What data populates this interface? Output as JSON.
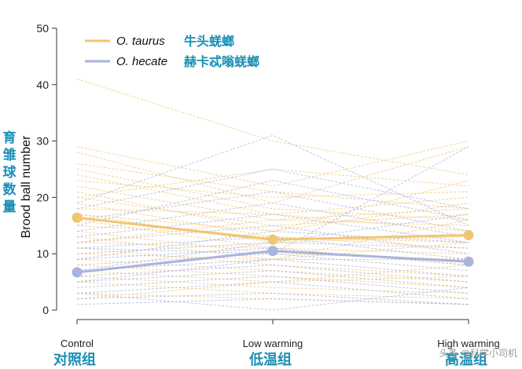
{
  "chart_data": {
    "type": "line",
    "categories": [
      "Control",
      "Low warming",
      "High warming"
    ],
    "categories_cn": [
      "对照组",
      "低温组",
      "高温组"
    ],
    "ylabel": "Brood ball number",
    "ylabel_cn": "育雏球数量",
    "ylim": [
      0,
      50
    ],
    "yticks": [
      0,
      10,
      20,
      30,
      40,
      50
    ],
    "grid": false,
    "legend_placement": "top-left",
    "series": [
      {
        "name": "O. taurus",
        "name_cn": "牛头蜣螂",
        "color": "#f2c572",
        "values": [
          16.4,
          12.5,
          13.3
        ]
      },
      {
        "name": "O. hecate",
        "name_cn": "赫卡忒嗡蜣螂",
        "color": "#aab3dc",
        "values": [
          6.7,
          10.5,
          8.6
        ]
      }
    ],
    "individual_lines": {
      "O. taurus": [
        [
          41,
          30,
          24
        ],
        [
          29,
          22,
          30
        ],
        [
          28,
          19,
          29
        ],
        [
          26,
          21,
          18
        ],
        [
          25,
          18,
          16
        ],
        [
          24,
          17,
          20
        ],
        [
          22,
          16,
          15
        ],
        [
          21,
          14,
          19
        ],
        [
          20,
          15,
          17
        ],
        [
          19,
          13,
          12
        ],
        [
          18,
          17,
          14
        ],
        [
          17,
          12,
          13
        ],
        [
          16,
          11,
          10
        ],
        [
          15,
          13,
          11
        ],
        [
          14,
          10,
          9
        ],
        [
          13,
          9,
          16
        ],
        [
          12,
          11,
          8
        ],
        [
          11,
          8,
          6
        ],
        [
          10,
          9,
          12
        ],
        [
          9,
          7,
          5
        ],
        [
          8,
          6,
          4
        ],
        [
          7,
          5,
          8
        ],
        [
          6,
          4,
          3
        ],
        [
          5,
          3,
          2
        ],
        [
          3,
          2,
          1
        ],
        [
          2,
          5,
          6
        ],
        [
          20,
          25,
          22
        ],
        [
          23,
          20,
          21
        ],
        [
          17,
          14,
          23
        ],
        [
          12,
          16,
          18
        ]
      ],
      "O. hecate": [
        [
          19,
          31,
          15
        ],
        [
          18,
          25,
          18
        ],
        [
          16,
          21,
          14
        ],
        [
          14,
          19,
          13
        ],
        [
          13,
          17,
          12
        ],
        [
          12,
          15,
          10
        ],
        [
          11,
          13,
          9
        ],
        [
          10,
          12,
          11
        ],
        [
          9,
          11,
          8
        ],
        [
          8,
          10,
          7
        ],
        [
          7,
          9,
          6
        ],
        [
          6,
          8,
          5
        ],
        [
          5,
          7,
          4
        ],
        [
          4,
          6,
          3
        ],
        [
          3,
          5,
          2
        ],
        [
          2,
          3,
          1
        ],
        [
          1,
          2,
          1
        ],
        [
          15,
          23,
          16
        ],
        [
          9,
          14,
          12
        ],
        [
          5,
          9,
          9
        ],
        [
          3,
          0,
          4
        ],
        [
          7,
          12,
          17
        ],
        [
          11,
          10,
          29
        ]
      ]
    }
  },
  "watermark": "头条 @科学小司机"
}
